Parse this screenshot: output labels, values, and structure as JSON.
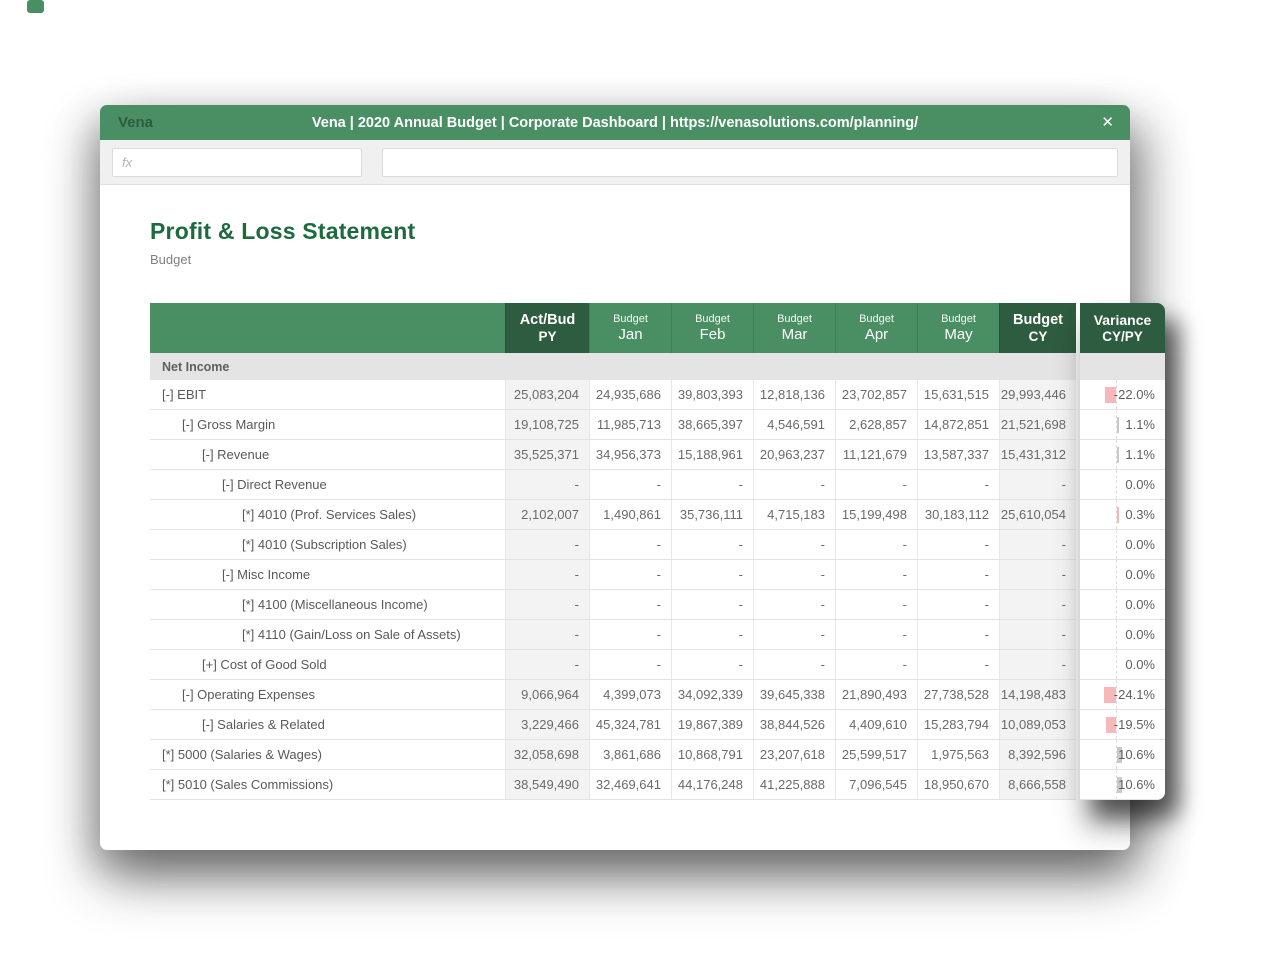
{
  "window": {
    "brand": "Vena",
    "title": "Vena | 2020 Annual Budget | Corporate Dashboard | https://venasolutions.com/planning/",
    "close_glyph": "✕"
  },
  "formula_bar": {
    "fx_placeholder": "fx",
    "formula_value": ""
  },
  "page": {
    "title": "Profit & Loss Statement",
    "subtitle": "Budget"
  },
  "colors": {
    "header_green": "#4a8f63",
    "header_dark_green": "#2e5c41",
    "title_green": "#1c6a3e",
    "negative_bar_pink": "#f6b9b9",
    "positive_bar_gray": "#c9c9c9"
  },
  "table": {
    "section_header": "Net Income",
    "header": {
      "columns": [
        {
          "id": "py",
          "line1": "Act/Bud",
          "line2": "PY",
          "variant": "dark",
          "style": "bold"
        },
        {
          "id": "jan",
          "line1": "Budget",
          "line2": "Jan",
          "variant": "light",
          "style": "small"
        },
        {
          "id": "feb",
          "line1": "Budget",
          "line2": "Feb",
          "variant": "light",
          "style": "small"
        },
        {
          "id": "mar",
          "line1": "Budget",
          "line2": "Mar",
          "variant": "light",
          "style": "small"
        },
        {
          "id": "apr",
          "line1": "Budget",
          "line2": "Apr",
          "variant": "light",
          "style": "small"
        },
        {
          "id": "may",
          "line1": "Budget",
          "line2": "May",
          "variant": "light",
          "style": "small"
        },
        {
          "id": "cy",
          "line1": "Budget",
          "line2": "CY",
          "variant": "dark",
          "style": "bold"
        }
      ],
      "variance": {
        "line1": "Variance",
        "line2": "CY/PY"
      }
    },
    "rows": [
      {
        "label": "[-] EBIT",
        "indent": 0,
        "values": [
          "25,083,204",
          "24,935,686",
          "39,803,393",
          "12,818,136",
          "23,702,857",
          "15,631,515",
          "29,993,446"
        ],
        "variance": "-22.0%",
        "bar_color": "pink"
      },
      {
        "label": "[-] Gross Margin",
        "indent": 1,
        "values": [
          "19,108,725",
          "11,985,713",
          "38,665,397",
          "4,546,591",
          "2,628,857",
          "14,872,851",
          "21,521,698"
        ],
        "variance": "1.1%",
        "bar_color": "gray"
      },
      {
        "label": "[-] Revenue",
        "indent": 2,
        "values": [
          "35,525,371",
          "34,956,373",
          "15,188,961",
          "20,963,237",
          "11,121,679",
          "13,587,337",
          "15,431,312"
        ],
        "variance": "1.1%",
        "bar_color": "gray"
      },
      {
        "label": "[-] Direct Revenue",
        "indent": 3,
        "values": [
          "-",
          "-",
          "-",
          "-",
          "-",
          "-",
          "-"
        ],
        "variance": "0.0%",
        "bar_color": "none"
      },
      {
        "label": "[*] 4010 (Prof. Services Sales)",
        "indent": 4,
        "values": [
          "2,102,007",
          "1,490,861",
          "35,736,111",
          "4,715,183",
          "15,199,498",
          "30,183,112",
          "25,610,054"
        ],
        "variance": "0.3%",
        "bar_color": "pink"
      },
      {
        "label": "[*] 4010 (Subscription Sales)",
        "indent": 4,
        "values": [
          "-",
          "-",
          "-",
          "-",
          "-",
          "-",
          "-"
        ],
        "variance": "0.0%",
        "bar_color": "none"
      },
      {
        "label": "[-] Misc Income",
        "indent": 3,
        "values": [
          "-",
          "-",
          "-",
          "-",
          "-",
          "-",
          "-"
        ],
        "variance": "0.0%",
        "bar_color": "none"
      },
      {
        "label": "[*] 4100 (Miscellaneous Income)",
        "indent": 4,
        "values": [
          "-",
          "-",
          "-",
          "-",
          "-",
          "-",
          "-"
        ],
        "variance": "0.0%",
        "bar_color": "none"
      },
      {
        "label": "[*] 4110 (Gain/Loss on Sale of Assets)",
        "indent": 4,
        "values": [
          "-",
          "-",
          "-",
          "-",
          "-",
          "-",
          "-"
        ],
        "variance": "0.0%",
        "bar_color": "none"
      },
      {
        "label": "[+] Cost of Good Sold",
        "indent": 2,
        "values": [
          "-",
          "-",
          "-",
          "-",
          "-",
          "-",
          "-"
        ],
        "variance": "0.0%",
        "bar_color": "none"
      },
      {
        "label": "[-] Operating Expenses",
        "indent": 1,
        "values": [
          "9,066,964",
          "4,399,073",
          "34,092,339",
          "39,645,338",
          "21,890,493",
          "27,738,528",
          "14,198,483"
        ],
        "variance": "-24.1%",
        "bar_color": "pink"
      },
      {
        "label": "[-] Salaries & Related",
        "indent": 2,
        "values": [
          "3,229,466",
          "45,324,781",
          "19,867,389",
          "38,844,526",
          "4,409,610",
          "15,283,794",
          "10,089,053"
        ],
        "variance": "-19.5%",
        "bar_color": "pink"
      },
      {
        "label": "[*] 5000 (Salaries & Wages)",
        "indent": 0,
        "values": [
          "32,058,698",
          "3,861,686",
          "10,868,791",
          "23,207,618",
          "25,599,517",
          "1,975,563",
          "8,392,596"
        ],
        "variance": "10.6%",
        "bar_color": "gray"
      },
      {
        "label": "[*] 5010 (Sales Commissions)",
        "indent": 0,
        "values": [
          "38,549,490",
          "32,469,641",
          "44,176,248",
          "41,225,888",
          "7,096,545",
          "18,950,670",
          "8,666,558"
        ],
        "variance": "10.6%",
        "bar_color": "gray"
      }
    ]
  }
}
